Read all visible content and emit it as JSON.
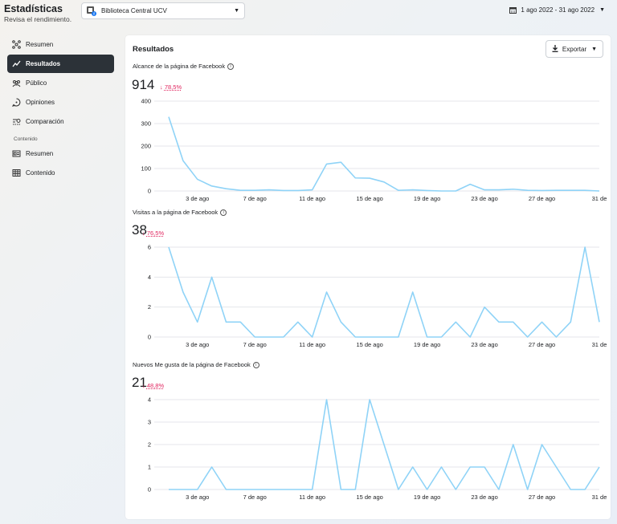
{
  "header": {
    "title": "Estadísticas",
    "subtitle": "Revisa el rendimiento.",
    "page_selector": "Biblioteca Central UCV",
    "date_range": "1 ago 2022 - 31 ago 2022"
  },
  "sidebar": {
    "items": [
      {
        "label": "Resumen",
        "icon": "overview-icon"
      },
      {
        "label": "Resultados",
        "icon": "results-icon",
        "active": true
      },
      {
        "label": "Público",
        "icon": "audience-icon"
      },
      {
        "label": "Opiniones",
        "icon": "feedback-icon"
      },
      {
        "label": "Comparación",
        "icon": "compare-icon"
      }
    ],
    "section_label": "Contenido",
    "content_items": [
      {
        "label": "Resumen",
        "icon": "content-overview-icon"
      },
      {
        "label": "Contenido",
        "icon": "content-table-icon"
      }
    ]
  },
  "main": {
    "title": "Resultados",
    "export_label": "Exportar"
  },
  "colors": {
    "line": "#8fd3f7",
    "grid": "#e4e6eb",
    "delta_down": "#e0245e",
    "sidebar_active": "#2c3238"
  },
  "chart_data": [
    {
      "type": "line",
      "title": "Alcance de la página de Facebook",
      "total": "914",
      "change": "78,5%",
      "x_ticks": [
        "3 de ago",
        "7 de ago",
        "11 de ago",
        "15 de ago",
        "19 de ago",
        "23 de ago",
        "27 de ago",
        "31 de"
      ],
      "y_ticks": [
        "0",
        "100",
        "200",
        "300",
        "400"
      ],
      "ylim": [
        0,
        400
      ],
      "x": [
        1,
        2,
        3,
        4,
        5,
        6,
        7,
        8,
        9,
        10,
        11,
        12,
        13,
        14,
        15,
        16,
        17,
        18,
        19,
        20,
        21,
        22,
        23,
        24,
        25,
        26,
        27,
        28,
        29,
        30,
        31
      ],
      "values": [
        330,
        135,
        52,
        22,
        10,
        3,
        3,
        5,
        2,
        2,
        5,
        120,
        128,
        58,
        57,
        40,
        3,
        5,
        2,
        0,
        0,
        30,
        5,
        5,
        8,
        3,
        2,
        3,
        3,
        3,
        0
      ]
    },
    {
      "type": "line",
      "title": "Visitas a la página de Facebook",
      "total": "38",
      "change": "76,5%",
      "x_ticks": [
        "3 de ago",
        "7 de ago",
        "11 de ago",
        "15 de ago",
        "19 de ago",
        "23 de ago",
        "27 de ago",
        "31 de"
      ],
      "y_ticks": [
        "0",
        "2",
        "4",
        "6"
      ],
      "ylim": [
        0,
        6
      ],
      "x": [
        1,
        2,
        3,
        4,
        5,
        6,
        7,
        8,
        9,
        10,
        11,
        12,
        13,
        14,
        15,
        16,
        17,
        18,
        19,
        20,
        21,
        22,
        23,
        24,
        25,
        26,
        27,
        28,
        29,
        30,
        31
      ],
      "values": [
        6,
        3,
        1,
        4,
        1,
        1,
        0,
        0,
        0,
        1,
        0,
        3,
        1,
        0,
        0,
        0,
        0,
        3,
        0,
        0,
        1,
        0,
        2,
        1,
        1,
        0,
        1,
        0,
        1,
        6,
        1
      ]
    },
    {
      "type": "line",
      "title": "Nuevos Me gusta de la página de Facebook",
      "total": "21",
      "change": "48,8%",
      "x_ticks": [
        "3 de ago",
        "7 de ago",
        "11 de ago",
        "15 de ago",
        "19 de ago",
        "23 de ago",
        "27 de ago",
        "31 de"
      ],
      "y_ticks": [
        "0",
        "1",
        "2",
        "3",
        "4"
      ],
      "ylim": [
        0,
        4
      ],
      "x": [
        1,
        2,
        3,
        4,
        5,
        6,
        7,
        8,
        9,
        10,
        11,
        12,
        13,
        14,
        15,
        16,
        17,
        18,
        19,
        20,
        21,
        22,
        23,
        24,
        25,
        26,
        27,
        28,
        29,
        30,
        31
      ],
      "values": [
        0,
        0,
        0,
        1,
        0,
        0,
        0,
        0,
        0,
        0,
        0,
        4,
        0,
        0,
        4,
        2,
        0,
        1,
        0,
        1,
        0,
        1,
        1,
        0,
        2,
        0,
        2,
        1,
        0,
        0,
        1
      ]
    }
  ]
}
